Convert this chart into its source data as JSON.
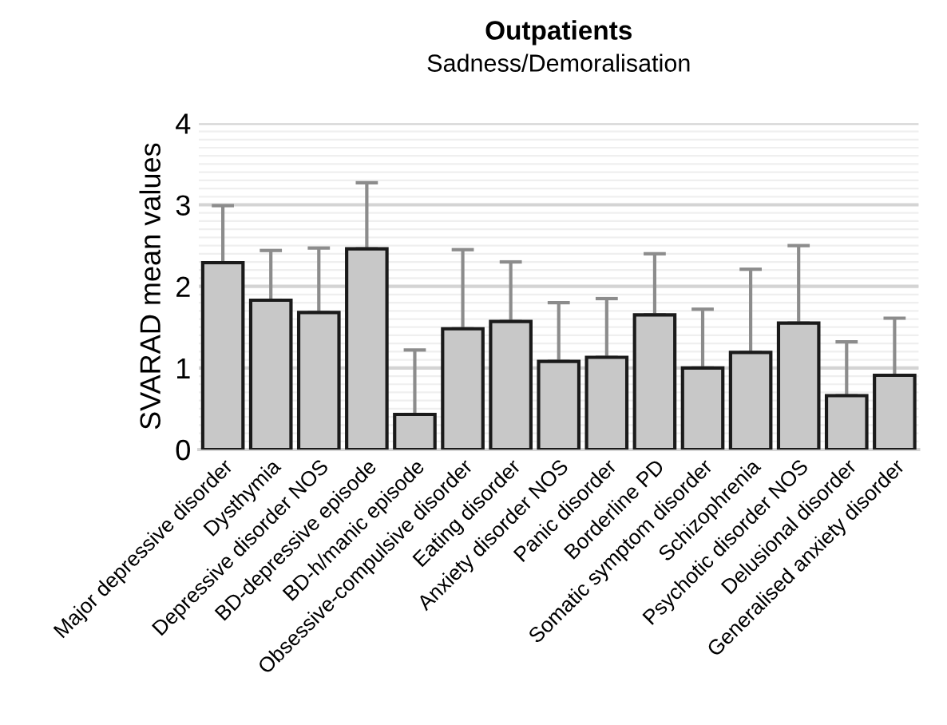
{
  "chart_data": {
    "type": "bar",
    "title": "Outpatients",
    "subtitle": "Sadness/Demoralisation",
    "ylabel": "SVARAD mean values",
    "categories": [
      "Major depressive disorder",
      "Dysthymia",
      "Depressive disorder NOS",
      "BD-depressive episode",
      "BD-h/manic episode",
      "Obsessive-compulsive disorder",
      "Eating disorder",
      "Anxiety disorder NOS",
      "Panic disorder",
      "Borderline PD",
      "Somatic symptom disorder",
      "Schizophrenia",
      "Psychotic disorder NOS",
      "Delusional disorder",
      "Generalised anxiety disorder"
    ],
    "values": [
      2.29,
      1.83,
      1.68,
      2.46,
      0.43,
      1.48,
      1.57,
      1.08,
      1.13,
      1.65,
      1.0,
      1.19,
      1.55,
      0.66,
      0.91
    ],
    "errors": [
      [
        2.29,
        2.99
      ],
      [
        1.83,
        2.44
      ],
      [
        1.68,
        2.47
      ],
      [
        2.46,
        3.27
      ],
      [
        0.43,
        1.22
      ],
      [
        1.48,
        2.45
      ],
      [
        1.57,
        2.3
      ],
      [
        1.08,
        1.8
      ],
      [
        1.13,
        1.85
      ],
      [
        1.65,
        2.4
      ],
      [
        1.0,
        1.72
      ],
      [
        1.19,
        2.21
      ],
      [
        1.55,
        2.5
      ],
      [
        0.66,
        1.32
      ],
      [
        0.91,
        1.61
      ]
    ],
    "color": "#c8c8c8",
    "ylim": [
      0,
      4
    ],
    "yticks": [
      0,
      1,
      2,
      3,
      4
    ],
    "grid": "y"
  }
}
